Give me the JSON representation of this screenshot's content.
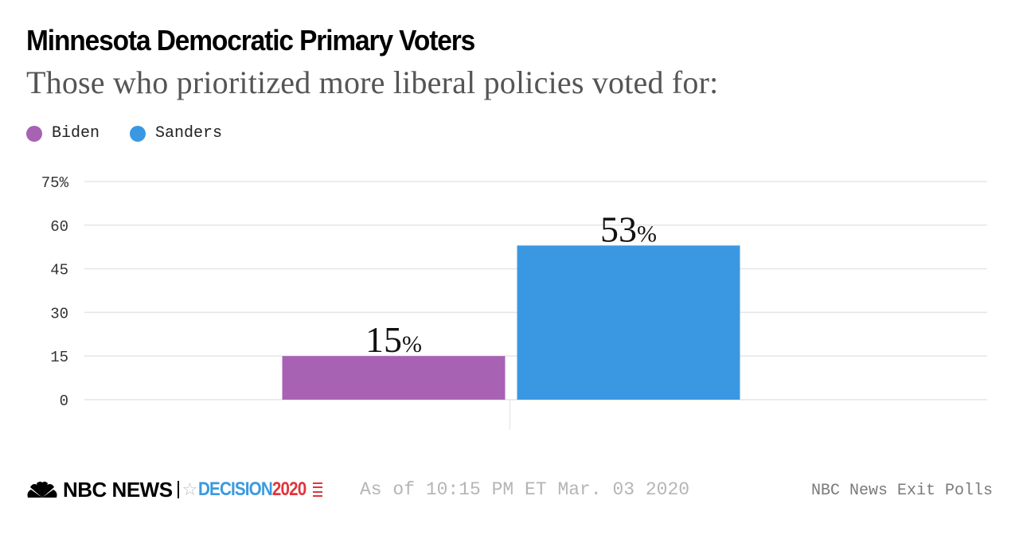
{
  "chart_data": {
    "type": "bar",
    "title": "Minnesota Democratic Primary Voters",
    "subtitle": "Those who prioritized more liberal policies voted for:",
    "categories": [
      "Biden",
      "Sanders"
    ],
    "series": [
      {
        "name": "Biden",
        "value": 15,
        "color": "#a862b4",
        "label": "15",
        "label_suffix": "%"
      },
      {
        "name": "Sanders",
        "value": 53,
        "color": "#3a98e2",
        "label": "53",
        "label_suffix": "%"
      }
    ],
    "ylim": [
      0,
      75
    ],
    "yticks": [
      {
        "value": 75,
        "label": "75%"
      },
      {
        "value": 60,
        "label": "60"
      },
      {
        "value": 45,
        "label": "45"
      },
      {
        "value": 30,
        "label": "30"
      },
      {
        "value": 15,
        "label": "15"
      },
      {
        "value": 0,
        "label": "0"
      }
    ],
    "grid": true,
    "legend_position": "top-left",
    "xlabel": "",
    "ylabel": ""
  },
  "legend": [
    {
      "label": "Biden",
      "color": "#a862b4"
    },
    {
      "label": "Sanders",
      "color": "#3a98e2"
    }
  ],
  "footer": {
    "brand": "NBC NEWS",
    "decision_word": "DECISION",
    "decision_year": "2020",
    "as_of": "As of 10:15 PM ET Mar. 03 2020",
    "source": "NBC News Exit Polls"
  }
}
